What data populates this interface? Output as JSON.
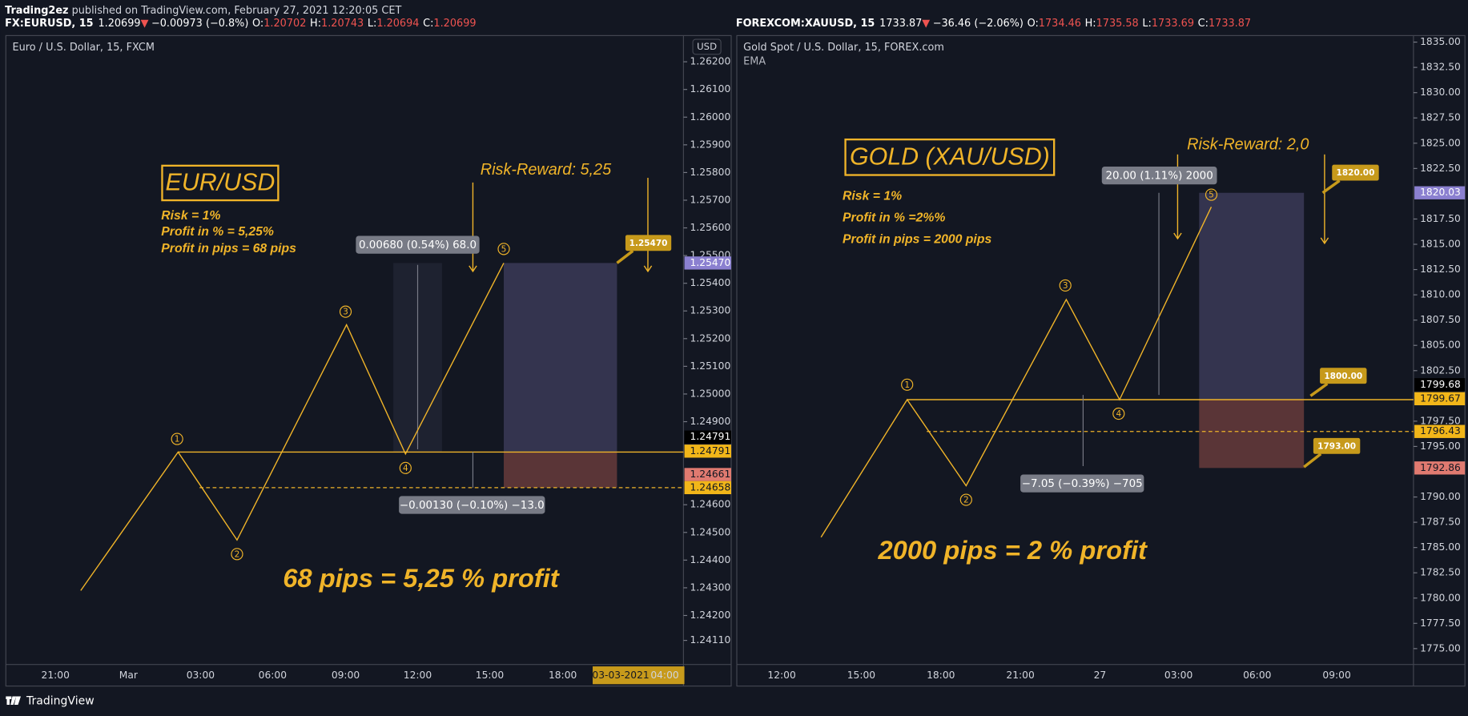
{
  "header": {
    "author": "Trading2ez",
    "published": " published on TradingView.com, February 27, 2021 12:20:05 CET"
  },
  "panels": [
    {
      "symbol": "FX:EURUSD, 15",
      "last": "1.20699",
      "arrow": "▼",
      "change": "−0.00973 (−0.8%)",
      "ohlc": [
        {
          "label": "O:",
          "value": "1.20702"
        },
        {
          "label": "H:",
          "value": "1.20743"
        },
        {
          "label": "L:",
          "value": "1.20694"
        },
        {
          "label": "C:",
          "value": "1.20699"
        }
      ],
      "title": "Euro / U.S. Dollar, 15, FXCM",
      "currency": "USD",
      "price_axis": [
        "1.26200",
        "1.26100",
        "1.26000",
        "1.25900",
        "1.25800",
        "1.25700",
        "1.25600",
        "1.25500",
        "1.25400",
        "1.25300",
        "1.25200",
        "1.25100",
        "1.25000",
        "1.24900",
        "1.24600",
        "1.24500",
        "1.24400",
        "1.24300",
        "1.24200",
        "1.24110"
      ],
      "price_markers": [
        {
          "label": "1.25470",
          "color": "#8b80d0",
          "text_color": "#ffffff"
        },
        {
          "label": "1.24791",
          "color": "#000000",
          "text_color": "#ffffff"
        },
        {
          "label": "1.24791",
          "color": "#f2b619",
          "text_color": "#131722"
        },
        {
          "label": "1.24661",
          "color": "#e07a70",
          "text_color": "#131722"
        },
        {
          "label": "1.24658",
          "color": "#f2b619",
          "text_color": "#131722"
        }
      ],
      "time_axis": [
        "21:00",
        "Mar",
        "03:00",
        "06:00",
        "09:00",
        "12:00",
        "15:00",
        "18:00",
        "03-03-2021",
        "04:00"
      ],
      "heading": "EUR/USD",
      "notes": [
        "Risk = 1%",
        "Profit in % = 5,25%",
        "Profit in pips = 68 pips"
      ],
      "risk_reward": "Risk-Reward: 5,25",
      "measure_up": "0.00680 (0.54%) 68.0",
      "measure_down": "−0.00130 (−0.10%) −13.0",
      "callouts": [
        "1.25470"
      ],
      "waves": [
        "1",
        "2",
        "3",
        "4",
        "5"
      ],
      "summary": "68 pips = 5,25 % profit"
    },
    {
      "symbol": "FOREXCOM:XAUUSD, 15",
      "last": "1733.87",
      "arrow": "▼",
      "change": "−36.46 (−2.06%)",
      "ohlc": [
        {
          "label": "O:",
          "value": "1734.46"
        },
        {
          "label": "H:",
          "value": "1735.58"
        },
        {
          "label": "L:",
          "value": "1733.69"
        },
        {
          "label": "C:",
          "value": "1733.87"
        }
      ],
      "title": "Gold Spot / U.S. Dollar, 15, FOREX.com",
      "indicator": "EMA",
      "price_axis": [
        "1835.00",
        "1832.50",
        "1830.00",
        "1827.50",
        "1825.00",
        "1822.50",
        "1817.50",
        "1815.00",
        "1812.50",
        "1810.00",
        "1807.50",
        "1805.00",
        "1802.50",
        "1797.50",
        "1795.00",
        "1790.00",
        "1787.50",
        "1785.00",
        "1782.50",
        "1780.00",
        "1777.50",
        "1775.00"
      ],
      "price_markers": [
        {
          "label": "1820.03",
          "color": "#8b80d0",
          "text_color": "#ffffff"
        },
        {
          "label": "1799.68",
          "color": "#000000",
          "text_color": "#ffffff"
        },
        {
          "label": "1799.67",
          "color": "#f2b619",
          "text_color": "#131722"
        },
        {
          "label": "1796.43",
          "color": "#f2b619",
          "text_color": "#131722"
        },
        {
          "label": "1792.86",
          "color": "#e07a70",
          "text_color": "#131722"
        }
      ],
      "time_axis": [
        "12:00",
        "15:00",
        "18:00",
        "21:00",
        "27",
        "03:00",
        "06:00",
        "09:00"
      ],
      "heading": "GOLD (XAU/USD)",
      "notes": [
        "Risk = 1%",
        "Profit in % =2%%",
        "Profit in pips = 2000 pips"
      ],
      "risk_reward": "Risk-Reward: 2,0",
      "measure_up": "20.00 (1.11%) 2000",
      "measure_down": "−7.05 (−0.39%) −705",
      "callouts": [
        "1820.00",
        "1800.00",
        "1793.00"
      ],
      "waves": [
        "1",
        "2",
        "3",
        "4",
        "5"
      ],
      "summary": "2000 pips = 2 % profit"
    }
  ],
  "footer": {
    "brand": "TradingView"
  }
}
